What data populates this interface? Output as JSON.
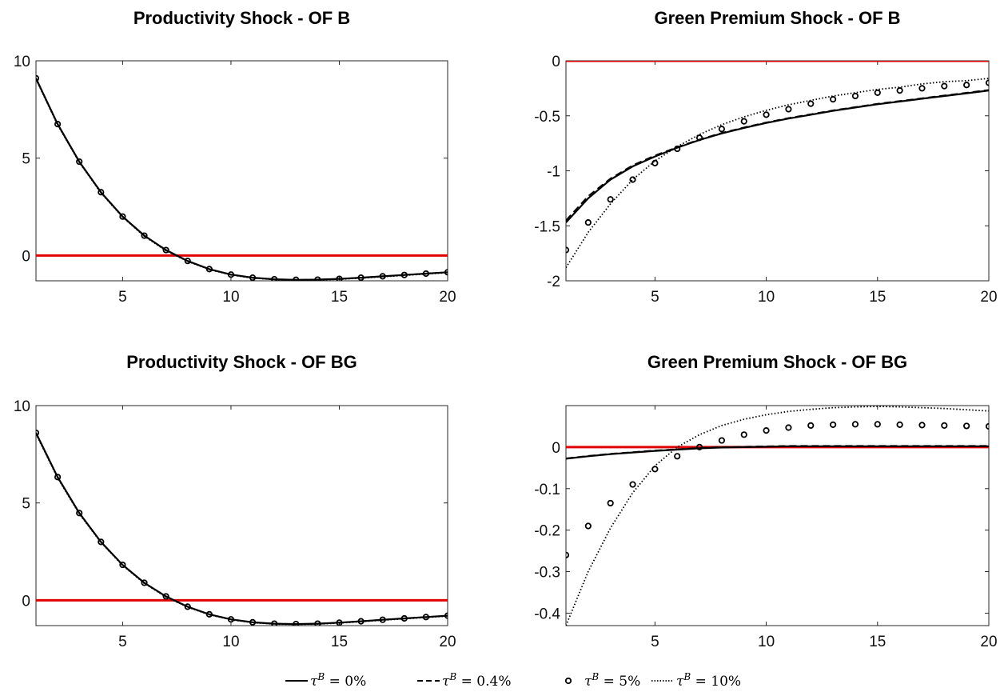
{
  "legend": {
    "entries": [
      {
        "name": "τ^B = 0%",
        "base": "τ",
        "sup": "B",
        "rest": " = 0%",
        "style": "solid"
      },
      {
        "name": "τ^B = 0.4%",
        "base": "τ",
        "sup": "B",
        "rest": " = 0.4%",
        "style": "dashed"
      },
      {
        "name": "τ^B = 5%",
        "base": "τ",
        "sup": "B",
        "rest": " = 5%",
        "style": "circles"
      },
      {
        "name": "τ^B = 10%",
        "base": "τ",
        "sup": "B",
        "rest": " = 10%",
        "style": "dotted"
      }
    ]
  },
  "colors": {
    "series": "#000000",
    "zero_line": "#e00000"
  },
  "chart_data": [
    {
      "type": "line",
      "title": "Productivity Shock - OF B",
      "xlim": [
        1,
        20
      ],
      "ylim": [
        -1.3,
        10
      ],
      "xticks": [
        5,
        10,
        15,
        20
      ],
      "yticks": [
        0,
        5,
        10
      ],
      "grid": false,
      "x": [
        1,
        2,
        3,
        4,
        5,
        6,
        7,
        8,
        9,
        10,
        11,
        12,
        13,
        14,
        15,
        16,
        17,
        18,
        19,
        20
      ],
      "series": [
        {
          "values": [
            9.1,
            6.75,
            4.82,
            3.25,
            2.0,
            1.02,
            0.28,
            -0.28,
            -0.7,
            -0.98,
            -1.14,
            -1.22,
            -1.25,
            -1.24,
            -1.2,
            -1.14,
            -1.07,
            -1.0,
            -0.93,
            -0.86
          ]
        },
        {
          "values": [
            9.1,
            6.75,
            4.82,
            3.25,
            2.0,
            1.02,
            0.28,
            -0.28,
            -0.7,
            -0.98,
            -1.14,
            -1.22,
            -1.25,
            -1.24,
            -1.2,
            -1.14,
            -1.07,
            -1.0,
            -0.93,
            -0.86
          ]
        },
        {
          "values": [
            9.1,
            6.75,
            4.82,
            3.25,
            2.0,
            1.02,
            0.28,
            -0.28,
            -0.7,
            -0.98,
            -1.14,
            -1.22,
            -1.25,
            -1.24,
            -1.2,
            -1.14,
            -1.07,
            -1.0,
            -0.93,
            -0.86
          ]
        },
        {
          "values": [
            9.05,
            6.7,
            4.78,
            3.21,
            1.97,
            0.99,
            0.25,
            -0.3,
            -0.72,
            -1.0,
            -1.16,
            -1.24,
            -1.27,
            -1.26,
            -1.22,
            -1.16,
            -1.09,
            -1.02,
            -0.95,
            -0.88
          ]
        }
      ],
      "zero_line": 0
    },
    {
      "type": "line",
      "title": "Green Premium Shock - OF B",
      "xlim": [
        1,
        20
      ],
      "ylim": [
        -2,
        0
      ],
      "xticks": [
        5,
        10,
        15,
        20
      ],
      "yticks": [
        0,
        -0.5,
        -1,
        -1.5,
        -2
      ],
      "ytick_labels": [
        "0",
        "-0.5",
        "-1",
        "-1.5",
        "-2"
      ],
      "grid": false,
      "x": [
        1,
        2,
        3,
        4,
        5,
        6,
        7,
        8,
        9,
        10,
        11,
        12,
        13,
        14,
        15,
        16,
        17,
        18,
        19,
        20
      ],
      "series": [
        {
          "values": [
            -1.47,
            -1.25,
            -1.08,
            -0.96,
            -0.87,
            -0.79,
            -0.72,
            -0.66,
            -0.61,
            -0.565,
            -0.525,
            -0.49,
            -0.455,
            -0.425,
            -0.395,
            -0.37,
            -0.345,
            -0.32,
            -0.295,
            -0.27
          ]
        },
        {
          "values": [
            -1.45,
            -1.23,
            -1.07,
            -0.95,
            -0.86,
            -0.785,
            -0.715,
            -0.655,
            -0.605,
            -0.56,
            -0.52,
            -0.485,
            -0.45,
            -0.42,
            -0.39,
            -0.365,
            -0.34,
            -0.315,
            -0.29,
            -0.265
          ]
        },
        {
          "values": [
            -1.72,
            -1.47,
            -1.26,
            -1.08,
            -0.93,
            -0.8,
            -0.7,
            -0.62,
            -0.55,
            -0.49,
            -0.44,
            -0.39,
            -0.35,
            -0.32,
            -0.29,
            -0.27,
            -0.25,
            -0.23,
            -0.22,
            -0.2
          ]
        },
        {
          "values": [
            -1.88,
            -1.56,
            -1.3,
            -1.08,
            -0.91,
            -0.78,
            -0.67,
            -0.58,
            -0.51,
            -0.45,
            -0.4,
            -0.36,
            -0.32,
            -0.29,
            -0.26,
            -0.24,
            -0.21,
            -0.19,
            -0.18,
            -0.16
          ]
        }
      ],
      "zero_line": 0
    },
    {
      "type": "line",
      "title": "Productivity Shock - OF BG",
      "xlim": [
        1,
        20
      ],
      "ylim": [
        -1.3,
        10
      ],
      "xticks": [
        5,
        10,
        15,
        20
      ],
      "yticks": [
        0,
        5,
        10
      ],
      "grid": false,
      "x": [
        1,
        2,
        3,
        4,
        5,
        6,
        7,
        8,
        9,
        10,
        11,
        12,
        13,
        14,
        15,
        16,
        17,
        18,
        19,
        20
      ],
      "series": [
        {
          "values": [
            8.6,
            6.33,
            4.48,
            3.0,
            1.82,
            0.9,
            0.2,
            -0.33,
            -0.72,
            -0.98,
            -1.13,
            -1.2,
            -1.22,
            -1.2,
            -1.15,
            -1.08,
            -1.0,
            -0.93,
            -0.86,
            -0.79
          ]
        },
        {
          "values": [
            8.6,
            6.33,
            4.48,
            3.0,
            1.82,
            0.9,
            0.2,
            -0.33,
            -0.72,
            -0.98,
            -1.13,
            -1.2,
            -1.22,
            -1.2,
            -1.15,
            -1.08,
            -1.0,
            -0.93,
            -0.86,
            -0.79
          ]
        },
        {
          "values": [
            8.6,
            6.33,
            4.48,
            3.0,
            1.82,
            0.9,
            0.2,
            -0.33,
            -0.72,
            -0.98,
            -1.13,
            -1.2,
            -1.22,
            -1.2,
            -1.15,
            -1.08,
            -1.0,
            -0.93,
            -0.86,
            -0.79
          ]
        },
        {
          "values": [
            8.55,
            6.28,
            4.44,
            2.97,
            1.79,
            0.87,
            0.17,
            -0.35,
            -0.74,
            -1.0,
            -1.15,
            -1.22,
            -1.24,
            -1.22,
            -1.17,
            -1.1,
            -1.02,
            -0.95,
            -0.88,
            -0.81
          ]
        }
      ],
      "zero_line": 0
    },
    {
      "type": "line",
      "title": "Green Premium Shock - OF BG",
      "xlim": [
        1,
        20
      ],
      "ylim": [
        -0.43,
        0.1
      ],
      "xticks": [
        5,
        10,
        15,
        20
      ],
      "yticks": [
        0,
        -0.1,
        -0.2,
        -0.3,
        -0.4
      ],
      "ytick_labels": [
        "0",
        "-0.1",
        "-0.2",
        "-0.3",
        "-0.4"
      ],
      "grid": false,
      "x": [
        1,
        2,
        3,
        4,
        5,
        6,
        7,
        8,
        9,
        10,
        11,
        12,
        13,
        14,
        15,
        16,
        17,
        18,
        19,
        20
      ],
      "series": [
        {
          "values": [
            -0.028,
            -0.022,
            -0.017,
            -0.013,
            -0.009,
            -0.006,
            -0.003,
            -0.001,
            0.0,
            0.001,
            0.002,
            0.002,
            0.002,
            0.002,
            0.002,
            0.002,
            0.002,
            0.002,
            0.002,
            0.002
          ]
        },
        {
          "values": [
            -0.027,
            -0.021,
            -0.016,
            -0.012,
            -0.008,
            -0.005,
            -0.002,
            0.0,
            0.001,
            0.002,
            0.003,
            0.003,
            0.003,
            0.003,
            0.003,
            0.003,
            0.003,
            0.003,
            0.003,
            0.003
          ]
        },
        {
          "values": [
            -0.26,
            -0.19,
            -0.135,
            -0.09,
            -0.053,
            -0.022,
            0.0,
            0.016,
            0.03,
            0.04,
            0.047,
            0.052,
            0.054,
            0.055,
            0.055,
            0.054,
            0.053,
            0.052,
            0.051,
            0.05
          ]
        },
        {
          "values": [
            -0.43,
            -0.3,
            -0.195,
            -0.11,
            -0.045,
            0.0,
            0.03,
            0.052,
            0.067,
            0.078,
            0.086,
            0.091,
            0.095,
            0.097,
            0.098,
            0.097,
            0.095,
            0.093,
            0.09,
            0.087
          ]
        }
      ],
      "zero_line": 0
    }
  ]
}
